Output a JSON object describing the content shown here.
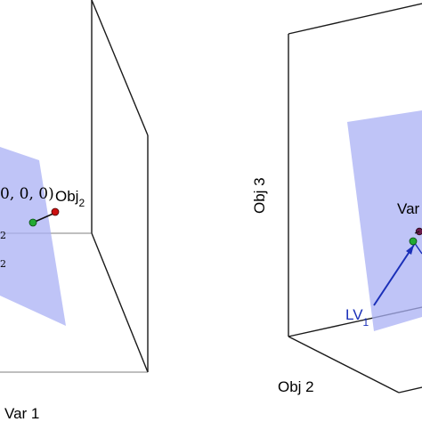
{
  "left_panel": {
    "axis_label": "Var 1",
    "point_coords": "0, 0, 0)",
    "point_label_main": "Obj",
    "point_label_sub": "2",
    "partial_label_1": "2",
    "partial_label_2": "2"
  },
  "right_panel": {
    "axis_label_vertical": "Obj 3",
    "axis_label_bottom": "Obj 2",
    "point_label": "Var",
    "vector_label_main": "LV",
    "vector_label_sub": "1"
  },
  "colors": {
    "plane": "#aab0f4",
    "vector": "#1a2fb8",
    "point_red": "#cc1111",
    "point_green": "#22aa33",
    "point_purple": "#6a1a4a"
  }
}
